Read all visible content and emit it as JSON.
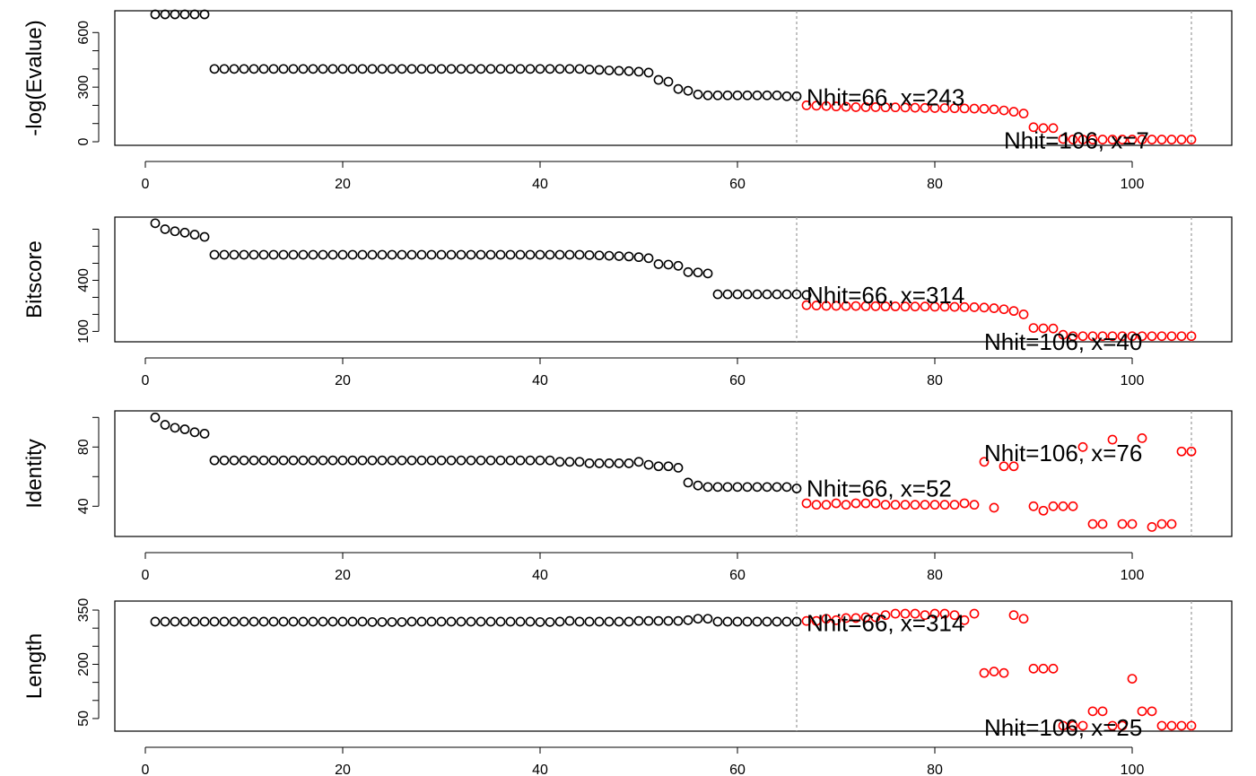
{
  "chart_data": [
    {
      "type": "scatter",
      "ylabel": "-log(Evalue)",
      "xlim": [
        0,
        106
      ],
      "ylim": [
        0,
        700
      ],
      "x_ticks": [
        0,
        20,
        40,
        60,
        80,
        100
      ],
      "y_ticks": [
        0,
        300,
        600
      ],
      "y_minor_ticks": [
        0,
        100,
        200,
        300,
        400,
        500,
        600
      ],
      "cutoffs": [
        66,
        106
      ],
      "annotations": [
        {
          "text": "Nhit=66, x=243",
          "x": 67,
          "y": 243
        },
        {
          "text": "Nhit=106, x=7",
          "x": 87,
          "y": 7
        }
      ],
      "series": [
        {
          "color": "#000000",
          "x_start": 1,
          "values": [
            700,
            700,
            700,
            700,
            700,
            700,
            400,
            400,
            400,
            400,
            400,
            400,
            400,
            400,
            400,
            400,
            400,
            400,
            400,
            400,
            400,
            400,
            400,
            400,
            400,
            400,
            400,
            400,
            400,
            400,
            400,
            400,
            400,
            400,
            400,
            400,
            400,
            400,
            400,
            400,
            400,
            400,
            400,
            400,
            397,
            395,
            392,
            390,
            388,
            385,
            380,
            340,
            330,
            290,
            280,
            260,
            255,
            255,
            255,
            255,
            255,
            255,
            255,
            255,
            250,
            250
          ]
        },
        {
          "color": "#ff0000",
          "x_start": 67,
          "values": [
            200,
            198,
            196,
            194,
            192,
            190,
            190,
            190,
            189,
            189,
            188,
            187,
            186,
            185,
            185,
            184,
            183,
            182,
            181,
            178,
            172,
            165,
            155,
            80,
            75,
            75,
            15,
            12,
            12,
            12,
            12,
            12,
            12,
            12,
            12,
            12,
            12,
            12,
            12,
            12
          ]
        }
      ]
    },
    {
      "type": "scatter",
      "ylabel": "Bitscore",
      "xlim": [
        0,
        106
      ],
      "ylim": [
        60,
        750
      ],
      "x_ticks": [
        0,
        20,
        40,
        60,
        80,
        100
      ],
      "y_ticks": [
        100,
        400
      ],
      "y_minor_ticks": [
        100,
        200,
        300,
        400,
        500,
        600,
        700
      ],
      "cutoffs": [
        66,
        106
      ],
      "annotations": [
        {
          "text": "Nhit=66, x=314",
          "x": 67,
          "y": 314
        },
        {
          "text": "Nhit=106, x=40",
          "x": 85,
          "y": 40
        }
      ],
      "series": [
        {
          "color": "#000000",
          "x_start": 1,
          "values": [
            735,
            700,
            688,
            680,
            668,
            655,
            550,
            550,
            550,
            550,
            550,
            550,
            550,
            550,
            550,
            550,
            550,
            550,
            550,
            550,
            550,
            550,
            550,
            550,
            550,
            550,
            550,
            550,
            550,
            550,
            550,
            550,
            550,
            550,
            550,
            550,
            550,
            550,
            550,
            550,
            550,
            550,
            550,
            550,
            548,
            546,
            544,
            542,
            540,
            536,
            530,
            495,
            492,
            485,
            448,
            446,
            440,
            318,
            318,
            318,
            318,
            318,
            318,
            318,
            318,
            318,
            314
          ]
        },
        {
          "color": "#ff0000",
          "x_start": 67,
          "values": [
            254,
            252,
            250,
            250,
            249,
            249,
            248,
            248,
            247,
            247,
            246,
            246,
            246,
            245,
            245,
            244,
            243,
            242,
            240,
            236,
            230,
            220,
            200,
            120,
            118,
            117,
            80,
            72,
            72,
            72,
            72,
            72,
            72,
            72,
            72,
            72,
            72,
            72,
            72,
            72
          ]
        }
      ]
    },
    {
      "type": "scatter",
      "ylabel": "Identity",
      "xlim": [
        0,
        106
      ],
      "ylim": [
        22,
        102
      ],
      "x_ticks": [
        0,
        20,
        40,
        60,
        80,
        100
      ],
      "y_ticks": [
        40,
        80
      ],
      "y_minor_ticks": [
        40,
        60,
        80,
        100
      ],
      "cutoffs": [
        66,
        106
      ],
      "annotations": [
        {
          "text": "Nhit=66, x=52",
          "x": 67,
          "y": 52
        },
        {
          "text": "Nhit=106, x=76",
          "x": 85,
          "y": 76
        }
      ],
      "series": [
        {
          "color": "#000000",
          "x_start": 1,
          "values": [
            100,
            95,
            93,
            92,
            90,
            89,
            71,
            71,
            71,
            71,
            71,
            71,
            71,
            71,
            71,
            71,
            71,
            71,
            71,
            71,
            71,
            71,
            71,
            71,
            71,
            71,
            71,
            71,
            71,
            71,
            71,
            71,
            71,
            71,
            71,
            71,
            71,
            71,
            71,
            71,
            71,
            70,
            70,
            70,
            69,
            69,
            69,
            69,
            69,
            70,
            68,
            67,
            67,
            66,
            56,
            54,
            53,
            53,
            53,
            53,
            53,
            53,
            53,
            53,
            53,
            52
          ]
        },
        {
          "color": "#ff0000",
          "x_start": 67,
          "values": [
            42,
            41,
            41,
            42,
            41,
            42,
            42,
            42,
            41,
            41,
            41,
            41,
            41,
            41,
            41,
            41,
            42,
            41,
            40,
            70,
            null,
            67,
            67,
            null,
            null,
            null,
            27,
            40,
            40,
            40,
            null,
            null,
            null,
            null,
            null,
            null,
            null,
            null,
            null,
            null
          ]
        },
        {
          "color": "#ff0000",
          "x": [
            85,
            86,
            87,
            88,
            89,
            90,
            91,
            92,
            93,
            94,
            95,
            96,
            97,
            98,
            99,
            100,
            101,
            102,
            103,
            104,
            105,
            106
          ],
          "values": [
            70,
            39,
            67,
            67,
            null,
            40,
            37,
            40,
            40,
            40,
            80,
            28,
            28,
            85,
            28,
            28,
            86,
            26,
            28,
            28,
            77,
            77
          ]
        }
      ]
    },
    {
      "type": "scatter",
      "ylabel": "Length",
      "xlim": [
        0,
        106
      ],
      "ylim": [
        25,
        365
      ],
      "x_ticks": [
        0,
        20,
        40,
        60,
        80,
        100
      ],
      "y_ticks": [
        50,
        200,
        350
      ],
      "y_minor_ticks": [
        50,
        100,
        150,
        200,
        250,
        300,
        350
      ],
      "cutoffs": [
        66,
        106
      ],
      "annotations": [
        {
          "text": "Nhit=66, x=314",
          "x": 67,
          "y": 314
        },
        {
          "text": "Nhit=106, x=25",
          "x": 85,
          "y": 25
        }
      ],
      "series": [
        {
          "color": "#000000",
          "x_start": 1,
          "values": [
            318,
            318,
            318,
            318,
            318,
            318,
            318,
            318,
            318,
            318,
            318,
            318,
            318,
            318,
            318,
            318,
            318,
            318,
            318,
            318,
            318,
            318,
            317,
            317,
            317,
            317,
            318,
            318,
            318,
            318,
            318,
            318,
            318,
            318,
            318,
            318,
            318,
            318,
            318,
            317,
            317,
            318,
            320,
            318,
            318,
            318,
            318,
            318,
            318,
            320,
            320,
            320,
            320,
            320,
            322,
            326,
            326,
            318,
            318,
            318,
            318,
            318,
            318,
            318,
            318,
            318
          ]
        },
        {
          "color": "#ff0000",
          "x_start": 67,
          "values": [
            320,
            320,
            326,
            322,
            328,
            328,
            330,
            330,
            336,
            340,
            340,
            340,
            336,
            340,
            340,
            336,
            322,
            340,
            176,
            180,
            176,
            336,
            326,
            188,
            188,
            188,
            30,
            30,
            30,
            70,
            70,
            30,
            30,
            160,
            70,
            70,
            30,
            30,
            30,
            30
          ]
        }
      ]
    }
  ]
}
